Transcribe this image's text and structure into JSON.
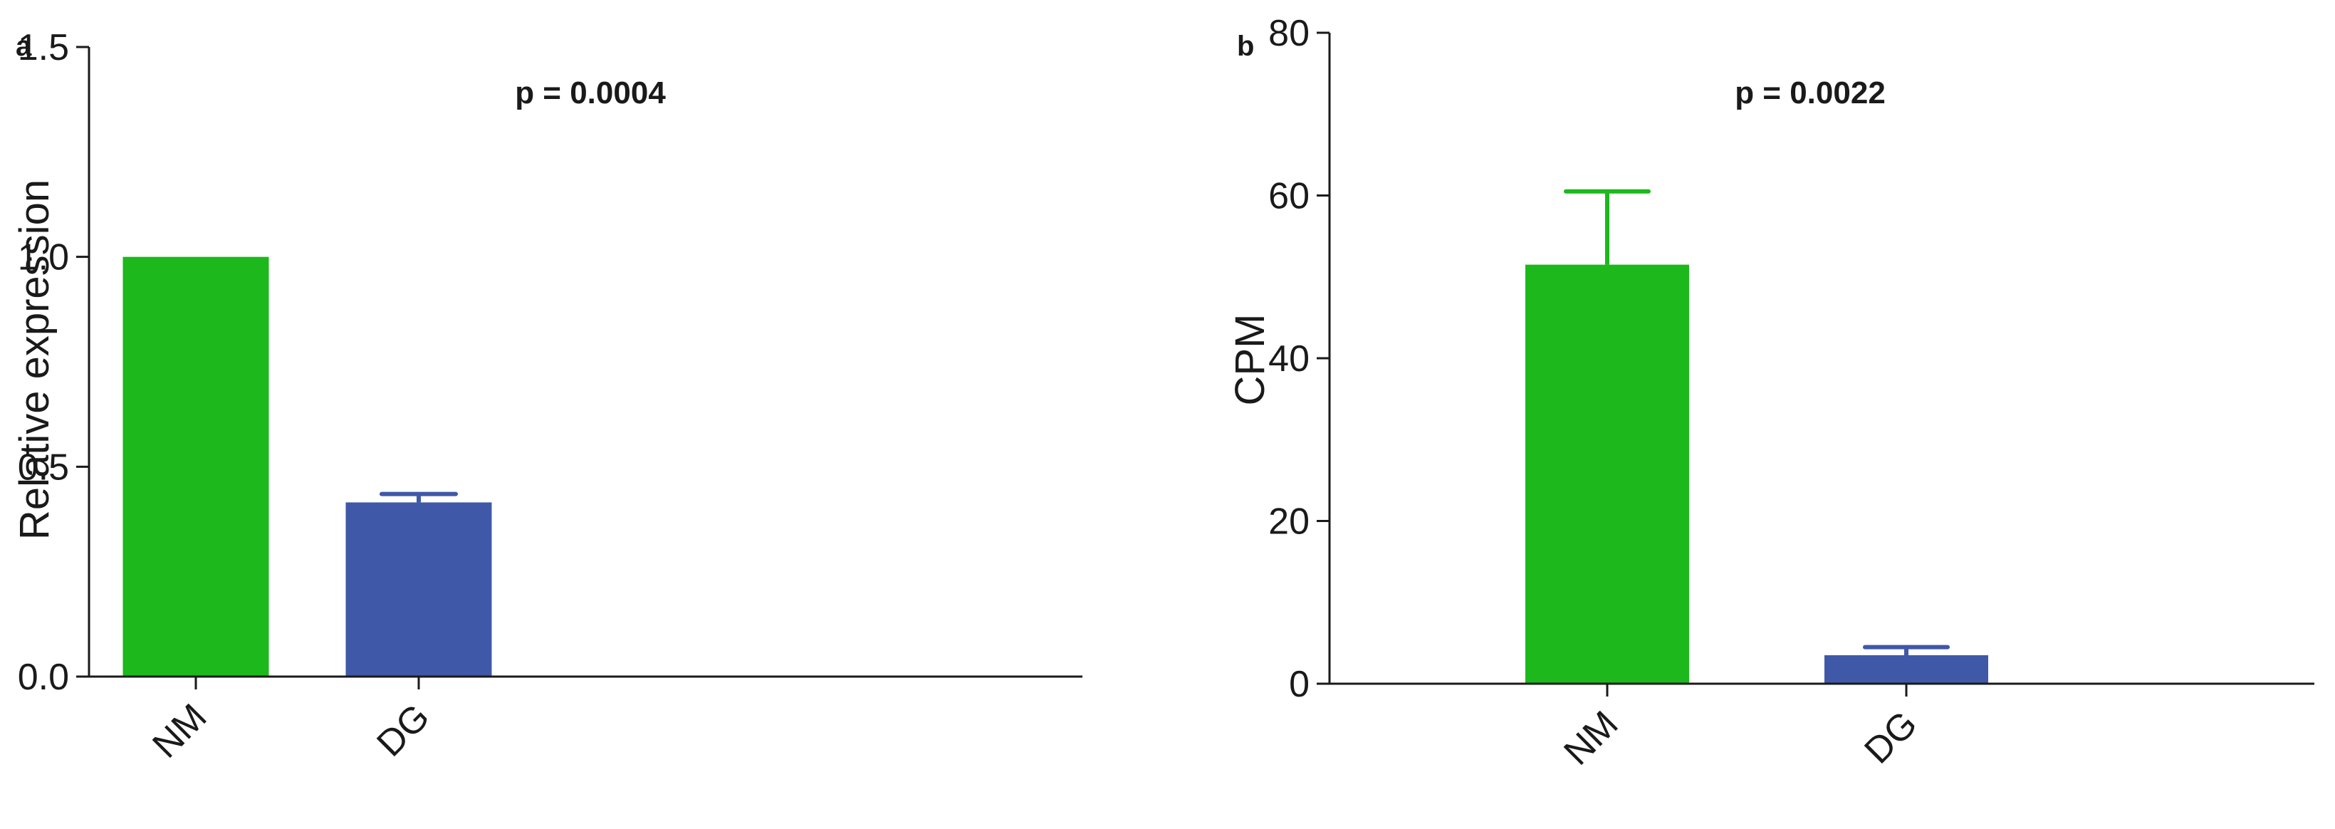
{
  "chart_data": [
    {
      "type": "bar",
      "panel_label": "a",
      "categories": [
        "NM",
        "DG"
      ],
      "values": [
        1.0,
        0.415
      ],
      "error_upper": [
        0.0,
        0.435
      ],
      "bar_colors": [
        "#1cb81c",
        "#3f58a8"
      ],
      "ylabel": "Relative expression",
      "xlabel": "",
      "ylim": [
        0,
        1.5
      ],
      "yticks": [
        "0.0",
        "0.5",
        "1.0",
        "1.5"
      ],
      "ytick_values": [
        0,
        0.5,
        1.0,
        1.5
      ],
      "annotation": "p = 0.0004",
      "grid": false,
      "legend": "none"
    },
    {
      "type": "bar",
      "panel_label": "b",
      "categories": [
        "NM",
        "DG"
      ],
      "values": [
        51.5,
        3.5
      ],
      "error_upper": [
        60.5,
        4.5
      ],
      "bar_colors": [
        "#1cb81c",
        "#3f58a8"
      ],
      "ylabel": "CPM",
      "xlabel": "",
      "ylim": [
        0,
        80
      ],
      "yticks": [
        "0",
        "20",
        "40",
        "60",
        "80"
      ],
      "ytick_values": [
        0,
        20,
        40,
        60,
        80
      ],
      "annotation": "p = 0.0022",
      "grid": false,
      "legend": "none"
    }
  ]
}
